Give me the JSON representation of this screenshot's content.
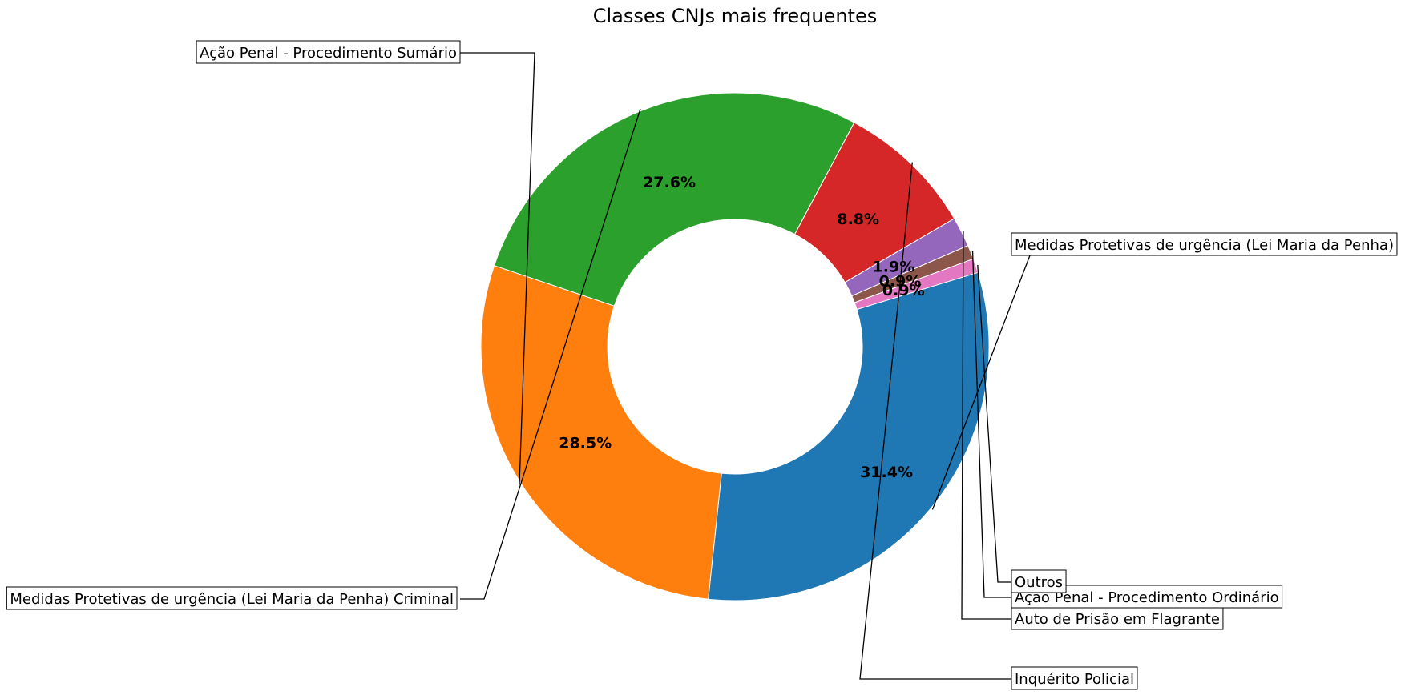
{
  "chart_data": {
    "type": "pie",
    "variant": "donut",
    "title": "Classes CNJs mais frequentes",
    "slices": [
      {
        "label": "Medidas Protetivas de urgência (Lei Maria da Penha)",
        "value": 31.4,
        "pct_label": "31.4%",
        "color": "#1f77b4"
      },
      {
        "label": "Ação Penal - Procedimento Sumário",
        "value": 28.5,
        "pct_label": "28.5%",
        "color": "#ff7f0e"
      },
      {
        "label": "Medidas Protetivas de urgência (Lei Maria da Penha) Criminal",
        "value": 27.6,
        "pct_label": "27.6%",
        "color": "#2ca02c"
      },
      {
        "label": "Inquérito Policial",
        "value": 8.8,
        "pct_label": "8.8%",
        "color": "#d62728"
      },
      {
        "label": "Auto de Prisão em Flagrante",
        "value": 1.9,
        "pct_label": "1.9%",
        "color": "#9467bd"
      },
      {
        "label": "Ação Penal - Procedimento Ordinário",
        "value": 0.9,
        "pct_label": "0.9%",
        "color": "#8c564b"
      },
      {
        "label": "Outros",
        "value": 0.9,
        "pct_label": "0.9%",
        "color": "#e377c2"
      }
    ],
    "legend": "none"
  }
}
